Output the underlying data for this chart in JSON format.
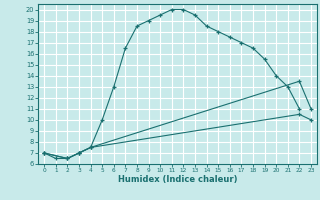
{
  "xlabel": "Humidex (Indice chaleur)",
  "bg_color": "#c8eaea",
  "line_color": "#1a7070",
  "grid_color": "#ffffff",
  "xlim": [
    -0.5,
    23.5
  ],
  "ylim": [
    6,
    20.5
  ],
  "xticks": [
    0,
    1,
    2,
    3,
    4,
    5,
    6,
    7,
    8,
    9,
    10,
    11,
    12,
    13,
    14,
    15,
    16,
    17,
    18,
    19,
    20,
    21,
    22,
    23
  ],
  "yticks": [
    6,
    7,
    8,
    9,
    10,
    11,
    12,
    13,
    14,
    15,
    16,
    17,
    18,
    19,
    20
  ],
  "line1_x": [
    0,
    1,
    2,
    3,
    4,
    5,
    6,
    7,
    8,
    9,
    10,
    11,
    12,
    13,
    14,
    15,
    16,
    17,
    18,
    19,
    20,
    21,
    22
  ],
  "line1_y": [
    7,
    6.5,
    6.5,
    7,
    7.5,
    10,
    13,
    16.5,
    18.5,
    19,
    19.5,
    20.0,
    20.0,
    19.5,
    18.5,
    18,
    17.5,
    17,
    16.5,
    15.5,
    14,
    13,
    11
  ],
  "line2_x": [
    0,
    2,
    3,
    4,
    22,
    23
  ],
  "line2_y": [
    7,
    6.5,
    7,
    7.5,
    13.5,
    11
  ],
  "line3_x": [
    0,
    2,
    3,
    4,
    22,
    23
  ],
  "line3_y": [
    7,
    6.5,
    7,
    7.5,
    10.5,
    10
  ]
}
